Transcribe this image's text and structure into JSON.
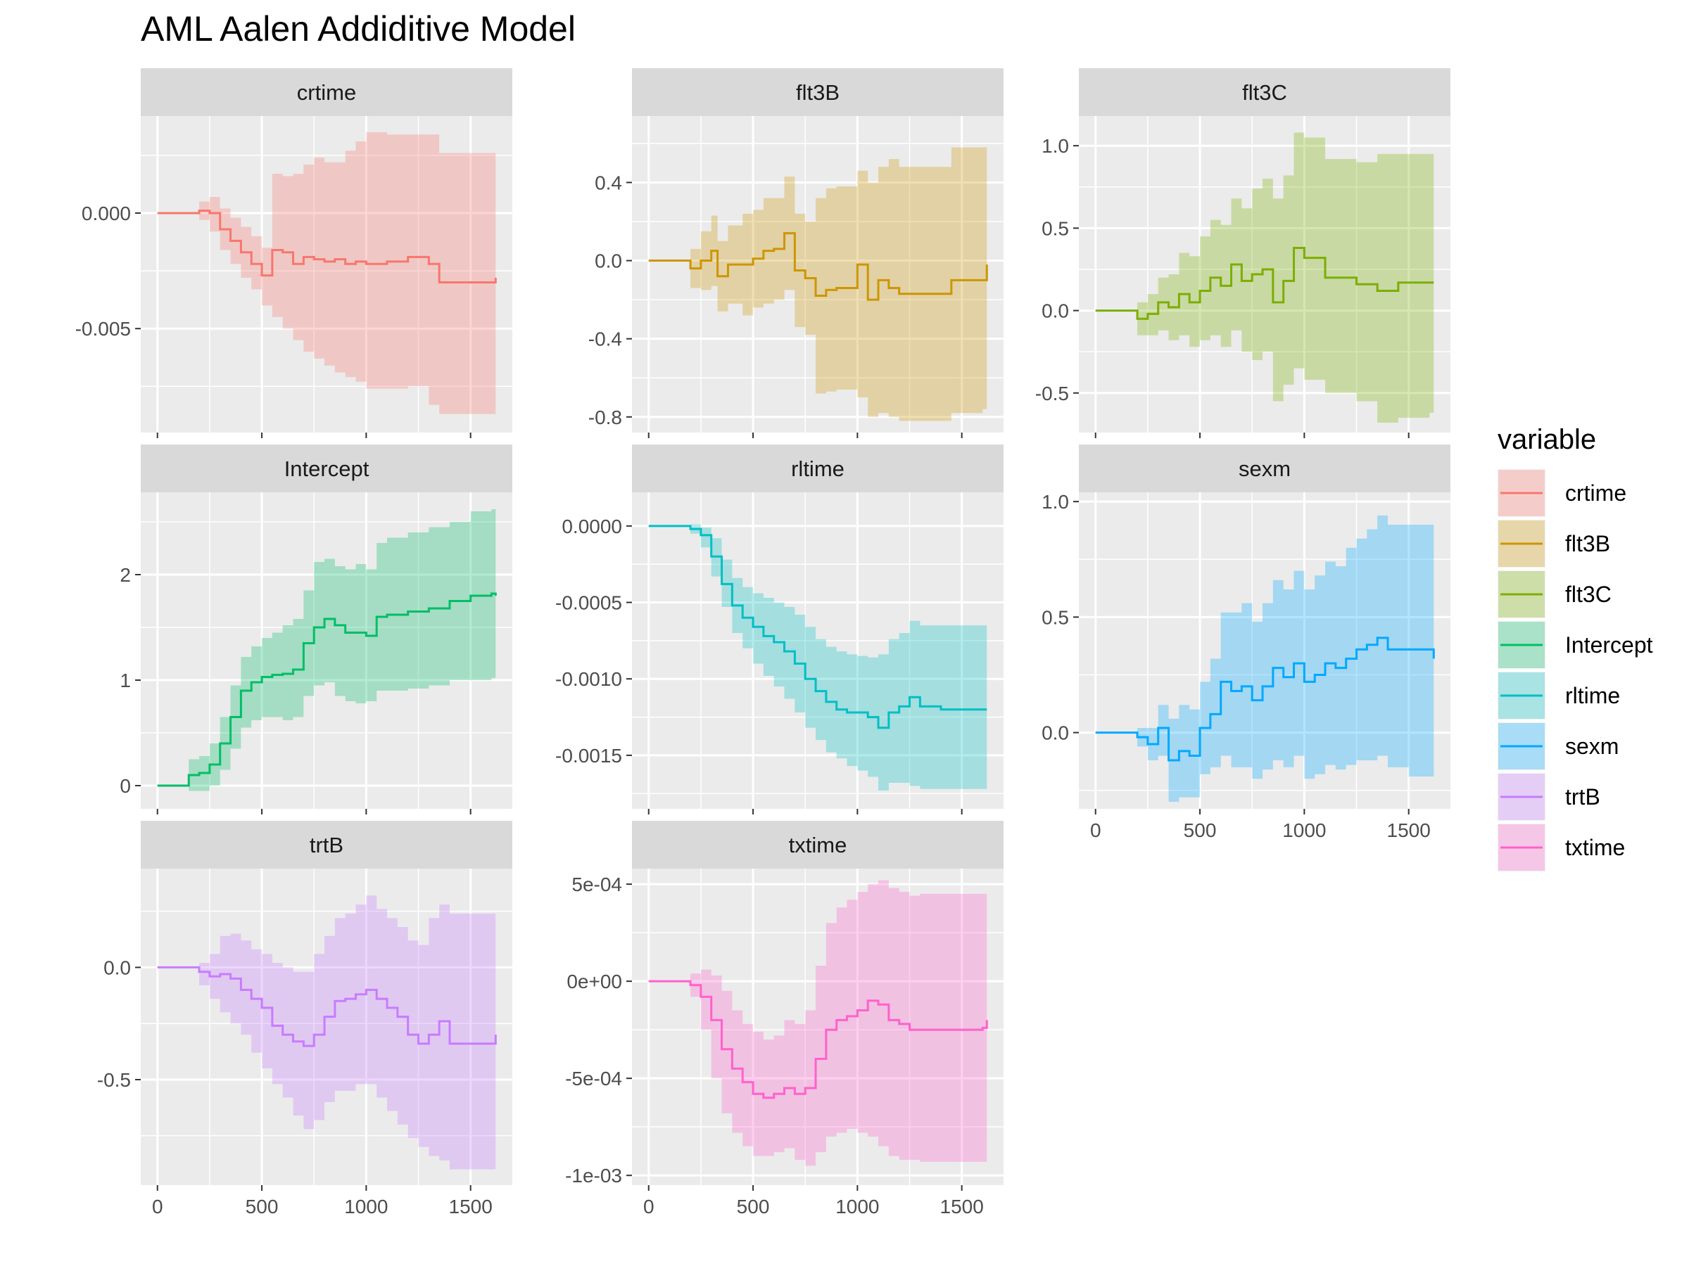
{
  "chart_data": {
    "type": "area",
    "title": "AML Aalen Addiditive Model",
    "xlabel": "",
    "ylabel": "",
    "x_ticks": [
      0,
      500,
      1000,
      1500
    ],
    "x_range": [
      -80,
      1700
    ],
    "legend": {
      "title": "variable",
      "position": "right",
      "entries": [
        "crtime",
        "flt3B",
        "flt3C",
        "Intercept",
        "rltime",
        "sexm",
        "trtB",
        "txtime"
      ]
    },
    "colors": {
      "crtime": "#F8766D",
      "flt3B": "#CD9600",
      "flt3C": "#7CAE00",
      "Intercept": "#00BE67",
      "rltime": "#00BFC4",
      "sexm": "#00A9FF",
      "trtB": "#C77CFF",
      "txtime": "#FF61CC"
    },
    "panels": [
      {
        "name": "crtime",
        "ylim": [
          -0.0095,
          0.0042
        ],
        "y_ticks": [
          0,
          -0.005
        ],
        "y_tick_labels": [
          "0.000",
          "-0.005"
        ],
        "x": [
          0,
          150,
          200,
          250,
          300,
          350,
          400,
          450,
          500,
          550,
          600,
          650,
          700,
          750,
          800,
          850,
          900,
          950,
          1000,
          1100,
          1200,
          1300,
          1350,
          1400,
          1500,
          1600,
          1620
        ],
        "estimate": [
          0,
          0,
          0.0001,
          0,
          -0.0007,
          -0.0012,
          -0.0017,
          -0.0022,
          -0.0027,
          -0.0016,
          -0.0017,
          -0.0022,
          -0.0019,
          -0.002,
          -0.0021,
          -0.002,
          -0.0022,
          -0.0021,
          -0.0022,
          -0.0021,
          -0.0019,
          -0.0022,
          -0.003,
          -0.003,
          -0.003,
          -0.003,
          -0.0028
        ],
        "lower": [
          0,
          0,
          -0.0003,
          -0.0008,
          -0.0016,
          -0.0022,
          -0.0028,
          -0.0033,
          -0.004,
          -0.0045,
          -0.005,
          -0.0055,
          -0.006,
          -0.0063,
          -0.0066,
          -0.0069,
          -0.0071,
          -0.0073,
          -0.0076,
          -0.0076,
          -0.0075,
          -0.0083,
          -0.0087,
          -0.0087,
          -0.0087,
          -0.0087,
          -0.0087
        ],
        "upper": [
          0,
          0,
          0.0005,
          0.0007,
          0.0002,
          -0.0002,
          -0.0006,
          -0.001,
          -0.0015,
          0.0017,
          0.0016,
          0.0017,
          0.0021,
          0.0024,
          0.0022,
          0.0022,
          0.0027,
          0.0031,
          0.0035,
          0.0034,
          0.0034,
          0.0034,
          0.0026,
          0.0026,
          0.0026,
          0.0026,
          0.0026
        ]
      },
      {
        "name": "flt3B",
        "ylim": [
          -0.88,
          0.74
        ],
        "y_ticks": [
          0.4,
          0,
          -0.4,
          -0.8
        ],
        "y_tick_labels": [
          "0.4",
          "0.0",
          "-0.4",
          "-0.8"
        ],
        "x": [
          0,
          130,
          200,
          250,
          300,
          330,
          380,
          450,
          500,
          550,
          600,
          650,
          700,
          750,
          800,
          850,
          900,
          1000,
          1050,
          1100,
          1150,
          1200,
          1350,
          1450,
          1600,
          1620
        ],
        "estimate": [
          0,
          0,
          -0.04,
          0,
          0.05,
          -0.08,
          -0.02,
          -0.02,
          0.01,
          0.05,
          0.06,
          0.14,
          -0.05,
          -0.09,
          -0.18,
          -0.15,
          -0.14,
          -0.02,
          -0.2,
          -0.1,
          -0.14,
          -0.17,
          -0.17,
          -0.1,
          -0.1,
          -0.02
        ],
        "lower": [
          0,
          0,
          -0.14,
          -0.15,
          -0.13,
          -0.26,
          -0.22,
          -0.28,
          -0.24,
          -0.22,
          -0.2,
          -0.15,
          -0.34,
          -0.38,
          -0.68,
          -0.67,
          -0.66,
          -0.7,
          -0.8,
          -0.78,
          -0.8,
          -0.82,
          -0.82,
          -0.78,
          -0.76,
          -0.76
        ],
        "upper": [
          0,
          0,
          0.06,
          0.15,
          0.23,
          0.1,
          0.18,
          0.24,
          0.26,
          0.32,
          0.32,
          0.43,
          0.24,
          0.2,
          0.32,
          0.37,
          0.38,
          0.46,
          0.4,
          0.48,
          0.52,
          0.48,
          0.48,
          0.58,
          0.58,
          0.58
        ]
      },
      {
        "name": "flt3C",
        "ylim": [
          -0.74,
          1.18
        ],
        "y_ticks": [
          1.0,
          0.5,
          0,
          -0.5
        ],
        "y_tick_labels": [
          "1.0",
          "0.5",
          "0.0",
          "-0.5"
        ],
        "x": [
          0,
          130,
          200,
          250,
          300,
          350,
          400,
          450,
          500,
          550,
          600,
          650,
          700,
          750,
          800,
          850,
          900,
          950,
          1000,
          1100,
          1200,
          1250,
          1350,
          1450,
          1600,
          1620
        ],
        "estimate": [
          0,
          0,
          -0.05,
          -0.02,
          0.05,
          0.02,
          0.1,
          0.05,
          0.12,
          0.2,
          0.15,
          0.28,
          0.18,
          0.22,
          0.25,
          0.05,
          0.18,
          0.38,
          0.32,
          0.2,
          0.2,
          0.16,
          0.12,
          0.17,
          0.17,
          0.17
        ],
        "lower": [
          0,
          0,
          -0.15,
          -0.15,
          -0.12,
          -0.18,
          -0.15,
          -0.22,
          -0.18,
          -0.15,
          -0.22,
          -0.12,
          -0.25,
          -0.3,
          -0.25,
          -0.55,
          -0.45,
          -0.35,
          -0.42,
          -0.5,
          -0.5,
          -0.55,
          -0.68,
          -0.65,
          -0.62,
          -0.62
        ],
        "upper": [
          0,
          0,
          0.05,
          0.1,
          0.2,
          0.22,
          0.35,
          0.33,
          0.45,
          0.55,
          0.52,
          0.68,
          0.62,
          0.74,
          0.8,
          0.68,
          0.82,
          1.08,
          1.05,
          0.92,
          0.92,
          0.9,
          0.95,
          0.95,
          0.95,
          0.95
        ]
      },
      {
        "name": "Intercept",
        "ylim": [
          -0.22,
          2.78
        ],
        "y_ticks": [
          2,
          1,
          0
        ],
        "y_tick_labels": [
          "2",
          "1",
          "0"
        ],
        "x": [
          0,
          100,
          150,
          200,
          250,
          300,
          350,
          400,
          450,
          500,
          550,
          600,
          650,
          700,
          750,
          800,
          850,
          900,
          950,
          1000,
          1050,
          1100,
          1200,
          1300,
          1400,
          1500,
          1600,
          1620
        ],
        "estimate": [
          0,
          0,
          0.1,
          0.12,
          0.2,
          0.4,
          0.65,
          0.9,
          0.98,
          1.03,
          1.05,
          1.06,
          1.1,
          1.35,
          1.5,
          1.58,
          1.52,
          1.45,
          1.45,
          1.42,
          1.6,
          1.62,
          1.65,
          1.68,
          1.75,
          1.8,
          1.82,
          1.8
        ],
        "lower": [
          0,
          0,
          -0.05,
          -0.05,
          0,
          0.15,
          0.35,
          0.55,
          0.62,
          0.65,
          0.65,
          0.62,
          0.65,
          0.85,
          0.95,
          0.98,
          0.85,
          0.8,
          0.78,
          0.8,
          0.9,
          0.9,
          0.92,
          0.95,
          1.0,
          1.0,
          1.02,
          1.02
        ],
        "upper": [
          0,
          0,
          0.25,
          0.28,
          0.4,
          0.65,
          0.95,
          1.22,
          1.32,
          1.4,
          1.45,
          1.52,
          1.58,
          1.85,
          2.12,
          2.15,
          2.08,
          2.05,
          2.1,
          2.05,
          2.3,
          2.35,
          2.4,
          2.45,
          2.5,
          2.6,
          2.62,
          2.62
        ]
      },
      {
        "name": "rltime",
        "ylim": [
          -0.00185,
          0.00022
        ],
        "y_ticks": [
          0,
          -0.0005,
          -0.001,
          -0.0015
        ],
        "y_tick_labels": [
          "0.0000",
          "-0.0005",
          "-0.0010",
          "-0.0015"
        ],
        "x": [
          0,
          150,
          200,
          250,
          300,
          350,
          400,
          450,
          500,
          550,
          600,
          650,
          700,
          750,
          800,
          850,
          900,
          950,
          1000,
          1050,
          1100,
          1150,
          1200,
          1250,
          1300,
          1400,
          1500,
          1600,
          1620
        ],
        "estimate": [
          0,
          0,
          -2e-05,
          -6e-05,
          -0.0002,
          -0.00038,
          -0.00052,
          -0.0006,
          -0.00066,
          -0.00072,
          -0.00076,
          -0.00082,
          -0.0009,
          -0.001,
          -0.00108,
          -0.00115,
          -0.0012,
          -0.00122,
          -0.00122,
          -0.00125,
          -0.00132,
          -0.00122,
          -0.00118,
          -0.00112,
          -0.00118,
          -0.0012,
          -0.0012,
          -0.0012,
          -0.0012
        ],
        "lower": [
          0,
          0,
          -5e-05,
          -0.00014,
          -0.00033,
          -0.00053,
          -0.0007,
          -0.0008,
          -0.0009,
          -0.00098,
          -0.00105,
          -0.00113,
          -0.00122,
          -0.00132,
          -0.0014,
          -0.00148,
          -0.00152,
          -0.00157,
          -0.0016,
          -0.00164,
          -0.00173,
          -0.00168,
          -0.00168,
          -0.0017,
          -0.00172,
          -0.00172,
          -0.00172,
          -0.00172,
          -0.00172
        ],
        "upper": [
          0,
          0,
          1e-05,
          -1e-05,
          -8e-05,
          -0.00022,
          -0.00034,
          -0.0004,
          -0.00044,
          -0.00047,
          -0.0005,
          -0.00053,
          -0.00058,
          -0.00066,
          -0.00074,
          -0.00079,
          -0.00082,
          -0.00084,
          -0.00085,
          -0.00086,
          -0.00084,
          -0.00074,
          -0.0007,
          -0.00062,
          -0.00065,
          -0.00065,
          -0.00065,
          -0.00065,
          -0.00065
        ]
      },
      {
        "name": "sexm",
        "ylim": [
          -0.33,
          1.04
        ],
        "y_ticks": [
          1.0,
          0.5,
          0
        ],
        "y_tick_labels": [
          "1.0",
          "0.5",
          "0.0"
        ],
        "x": [
          0,
          150,
          200,
          250,
          300,
          350,
          400,
          450,
          500,
          550,
          600,
          650,
          700,
          750,
          800,
          850,
          900,
          950,
          1000,
          1050,
          1100,
          1150,
          1200,
          1250,
          1300,
          1350,
          1400,
          1500,
          1600,
          1620
        ],
        "estimate": [
          0,
          0,
          -0.02,
          -0.05,
          0.02,
          -0.12,
          -0.08,
          -0.1,
          0.02,
          0.08,
          0.22,
          0.18,
          0.2,
          0.14,
          0.2,
          0.28,
          0.24,
          0.3,
          0.22,
          0.25,
          0.3,
          0.28,
          0.32,
          0.36,
          0.38,
          0.41,
          0.36,
          0.36,
          0.36,
          0.32
        ],
        "lower": [
          0,
          0,
          -0.06,
          -0.12,
          -0.1,
          -0.3,
          -0.28,
          -0.28,
          -0.18,
          -0.15,
          -0.1,
          -0.15,
          -0.15,
          -0.2,
          -0.16,
          -0.12,
          -0.15,
          -0.1,
          -0.2,
          -0.18,
          -0.14,
          -0.16,
          -0.14,
          -0.12,
          -0.12,
          -0.1,
          -0.15,
          -0.19,
          -0.19,
          -0.19
        ],
        "upper": [
          0,
          0,
          0.02,
          0.02,
          0.12,
          0.06,
          0.12,
          0.1,
          0.22,
          0.32,
          0.52,
          0.52,
          0.56,
          0.48,
          0.56,
          0.66,
          0.62,
          0.7,
          0.62,
          0.68,
          0.74,
          0.72,
          0.8,
          0.84,
          0.88,
          0.94,
          0.9,
          0.9,
          0.9,
          0.9
        ]
      },
      {
        "name": "trtB",
        "ylim": [
          -0.97,
          0.44
        ],
        "y_ticks": [
          0,
          -0.5
        ],
        "y_tick_labels": [
          "0.0",
          "-0.5"
        ],
        "x": [
          0,
          150,
          200,
          250,
          300,
          350,
          400,
          450,
          500,
          550,
          600,
          650,
          700,
          750,
          800,
          850,
          900,
          950,
          1000,
          1050,
          1100,
          1150,
          1200,
          1250,
          1300,
          1350,
          1400,
          1500,
          1600,
          1620
        ],
        "estimate": [
          0,
          0,
          -0.02,
          -0.04,
          -0.03,
          -0.05,
          -0.1,
          -0.14,
          -0.18,
          -0.26,
          -0.3,
          -0.33,
          -0.35,
          -0.3,
          -0.22,
          -0.15,
          -0.14,
          -0.12,
          -0.1,
          -0.14,
          -0.18,
          -0.22,
          -0.3,
          -0.34,
          -0.3,
          -0.24,
          -0.34,
          -0.34,
          -0.34,
          -0.3
        ],
        "lower": [
          0,
          0,
          -0.08,
          -0.14,
          -0.2,
          -0.25,
          -0.3,
          -0.38,
          -0.45,
          -0.52,
          -0.58,
          -0.66,
          -0.72,
          -0.68,
          -0.6,
          -0.55,
          -0.55,
          -0.52,
          -0.52,
          -0.58,
          -0.64,
          -0.7,
          -0.76,
          -0.8,
          -0.84,
          -0.86,
          -0.9,
          -0.9,
          -0.9,
          -0.9
        ],
        "upper": [
          0,
          0,
          0.02,
          0.06,
          0.14,
          0.15,
          0.12,
          0.08,
          0.06,
          0.02,
          0.0,
          -0.02,
          -0.02,
          0.06,
          0.14,
          0.22,
          0.24,
          0.28,
          0.32,
          0.26,
          0.22,
          0.18,
          0.12,
          0.1,
          0.22,
          0.28,
          0.24,
          0.24,
          0.24,
          0.24
        ]
      },
      {
        "name": "txtime",
        "ylim": [
          -0.00105,
          0.00058
        ],
        "y_ticks": [
          0.0005,
          0,
          -0.0005,
          -0.001
        ],
        "y_tick_labels": [
          "5e-04",
          "0e+00",
          "-5e-04",
          "-1e-03"
        ],
        "x": [
          0,
          130,
          200,
          250,
          300,
          350,
          400,
          450,
          500,
          550,
          600,
          650,
          700,
          750,
          800,
          850,
          900,
          950,
          1000,
          1050,
          1100,
          1150,
          1200,
          1250,
          1300,
          1400,
          1500,
          1600,
          1620
        ],
        "estimate": [
          0,
          0,
          -2e-05,
          -8e-05,
          -0.0002,
          -0.00035,
          -0.00045,
          -0.00052,
          -0.00058,
          -0.0006,
          -0.00058,
          -0.00055,
          -0.00058,
          -0.00055,
          -0.0004,
          -0.00025,
          -0.0002,
          -0.00018,
          -0.00015,
          -0.0001,
          -0.00012,
          -0.0002,
          -0.00022,
          -0.00025,
          -0.00025,
          -0.00025,
          -0.00025,
          -0.00024,
          -0.0002
        ],
        "lower": [
          0,
          0,
          -8e-05,
          -0.00025,
          -0.0005,
          -0.00068,
          -0.00078,
          -0.00085,
          -0.0009,
          -0.0009,
          -0.00088,
          -0.00086,
          -0.00092,
          -0.00095,
          -0.00088,
          -0.0008,
          -0.00078,
          -0.00076,
          -0.00078,
          -0.0008,
          -0.00085,
          -0.0009,
          -0.00092,
          -0.00092,
          -0.00093,
          -0.00093,
          -0.00093,
          -0.00093,
          -0.00093
        ],
        "upper": [
          0,
          0,
          4e-05,
          6e-05,
          3e-05,
          -5e-05,
          -0.00015,
          -0.00022,
          -0.00026,
          -0.0003,
          -0.00028,
          -0.0002,
          -0.00022,
          -0.00015,
          8e-05,
          0.0003,
          0.00038,
          0.00042,
          0.00046,
          0.0005,
          0.00052,
          0.00048,
          0.00046,
          0.00044,
          0.00045,
          0.00045,
          0.00045,
          0.00045,
          0.00045
        ]
      }
    ]
  }
}
